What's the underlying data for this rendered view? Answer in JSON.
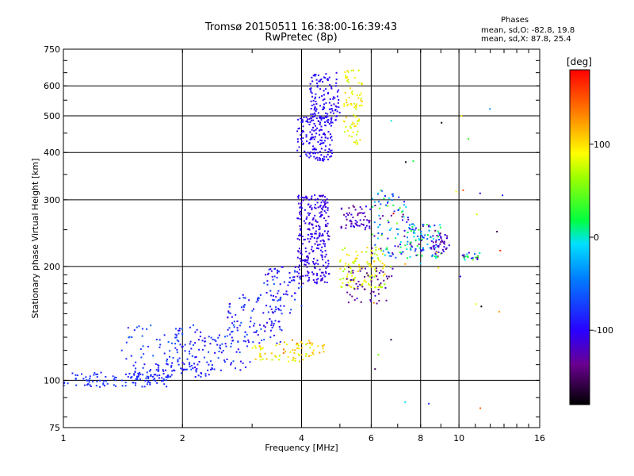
{
  "header": {
    "title_line1": "Tromsø 20150511 16:38:00-16:39:43",
    "title_line2": "RwPretec (8p)"
  },
  "phase_box": {
    "title": "Phases",
    "line_o": "mean, sd,O: -82.8, 19.8",
    "line_x": "mean, sd,X:  87.8, 25.4"
  },
  "colorbar": {
    "label": "[deg]",
    "range": [
      -180,
      180
    ],
    "ticks": [
      100,
      0,
      -100
    ]
  },
  "chart_data": {
    "type": "scatter",
    "title": "Tromsø 20150511 16:38:00-16:39:43",
    "subtitle": "RwPretec (8p)",
    "xlabel": "Frequency [MHz]",
    "ylabel": "Stationary phase Virtual Height [km]",
    "xscale": "log",
    "yscale": "log",
    "xlim": [
      1,
      16
    ],
    "ylim": [
      75,
      750
    ],
    "xticks": [
      1,
      2,
      4,
      6,
      8,
      10,
      16
    ],
    "yticks": [
      75,
      100,
      200,
      300,
      400,
      500,
      600,
      750
    ],
    "x_gridlines": [
      2,
      4,
      6,
      8,
      10
    ],
    "y_gridlines": [
      100,
      200,
      300,
      400,
      500,
      600
    ],
    "color_by": "phase (deg)",
    "clusters": [
      {
        "x_range": [
          1.0,
          1.85
        ],
        "y_range": [
          96,
          105
        ],
        "n": 110,
        "phase": [
          -90,
          -70
        ]
      },
      {
        "x_range": [
          1.5,
          2.4
        ],
        "y_range": [
          102,
          112
        ],
        "n": 70,
        "phase": [
          -95,
          -75
        ]
      },
      {
        "x_range": [
          1.4,
          2.0
        ],
        "y_range": [
          112,
          140
        ],
        "n": 45,
        "phase": [
          -95,
          -55
        ]
      },
      {
        "x_range": [
          1.9,
          3.0
        ],
        "y_range": [
          106,
          140
        ],
        "n": 110,
        "phase": [
          -110,
          -60
        ]
      },
      {
        "x_range": [
          2.6,
          3.6
        ],
        "y_range": [
          125,
          170
        ],
        "n": 90,
        "phase": [
          -115,
          -60
        ]
      },
      {
        "x_range": [
          3.2,
          4.0
        ],
        "y_range": [
          150,
          200
        ],
        "n": 70,
        "phase": [
          -115,
          -60
        ]
      },
      {
        "x_range": [
          3.0,
          4.3
        ],
        "y_range": [
          112,
          125
        ],
        "n": 55,
        "phase": [
          70,
          120
        ]
      },
      {
        "x_range": [
          3.5,
          4.6
        ],
        "y_range": [
          118,
          128
        ],
        "n": 25,
        "phase": [
          100,
          140
        ]
      },
      {
        "x_range": [
          3.9,
          4.7
        ],
        "y_range": [
          180,
          310
        ],
        "n": 280,
        "phase": [
          -120,
          -95
        ]
      },
      {
        "x_range": [
          3.9,
          4.8
        ],
        "y_range": [
          380,
          500
        ],
        "n": 160,
        "phase": [
          -110,
          -90
        ]
      },
      {
        "x_range": [
          4.2,
          5.0
        ],
        "y_range": [
          480,
          650
        ],
        "n": 120,
        "phase": [
          -110,
          -90
        ]
      },
      {
        "x_range": [
          5.1,
          5.7
        ],
        "y_range": [
          420,
          660
        ],
        "n": 80,
        "phase": [
          70,
          110
        ]
      },
      {
        "x_range": [
          5.0,
          6.0
        ],
        "y_range": [
          250,
          290
        ],
        "n": 60,
        "phase": [
          -140,
          -100
        ]
      },
      {
        "x_range": [
          5.0,
          6.5
        ],
        "y_range": [
          175,
          225
        ],
        "n": 110,
        "phase": [
          60,
          110
        ]
      },
      {
        "x_range": [
          5.2,
          6.8
        ],
        "y_range": [
          160,
          200
        ],
        "n": 60,
        "phase": [
          -150,
          -110
        ]
      },
      {
        "x_range": [
          6.0,
          7.5
        ],
        "y_range": [
          210,
          320
        ],
        "n": 100,
        "phase": [
          -150,
          60
        ]
      },
      {
        "x_range": [
          7.5,
          9.0
        ],
        "y_range": [
          210,
          260
        ],
        "n": 90,
        "phase": [
          -140,
          40
        ]
      },
      {
        "x_range": [
          8.5,
          9.5
        ],
        "y_range": [
          215,
          250
        ],
        "n": 40,
        "phase": [
          -150,
          -90
        ]
      },
      {
        "x_range": [
          10.2,
          11.3
        ],
        "y_range": [
          208,
          218
        ],
        "n": 22,
        "phase": [
          -140,
          60
        ]
      },
      {
        "x_range": [
          6.0,
          13.0
        ],
        "y_range": [
          80,
          600
        ],
        "n": 35,
        "phase": [
          -180,
          180
        ]
      }
    ]
  }
}
